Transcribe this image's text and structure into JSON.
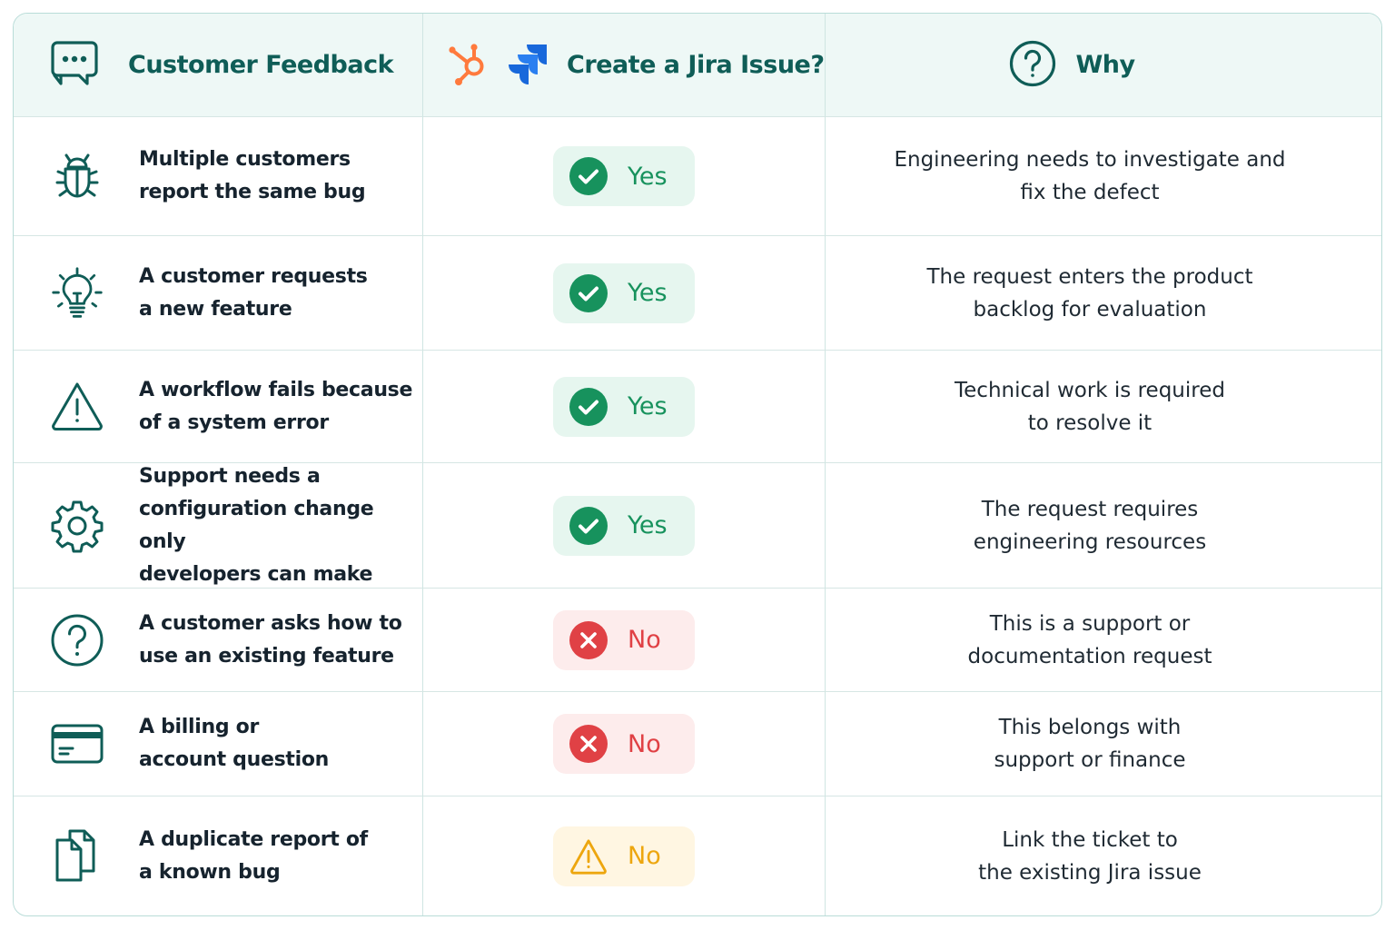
{
  "header": {
    "feedback_title": "Customer Feedback",
    "decision_title": "Create a Jira Issue?",
    "why_title": "Why"
  },
  "colors": {
    "brand_teal": "#0f5d57",
    "header_bg": "#eef8f6",
    "yes_green": "#17925d",
    "no_red": "#e04145",
    "warn_amber": "#eda60e",
    "hubspot_orange": "#ff7a3d",
    "jira_blue": "#1868db"
  },
  "rows": [
    {
      "icon": "bug-icon",
      "feedback": [
        "Multiple customers",
        "report the same bug"
      ],
      "decision": "Yes",
      "status": "yes",
      "why": [
        "Engineering needs to investigate and",
        "fix the defect"
      ]
    },
    {
      "icon": "lightbulb-icon",
      "feedback": [
        "A customer requests",
        "a new feature"
      ],
      "decision": "Yes",
      "status": "yes",
      "why": [
        "The request enters the product",
        "backlog for evaluation"
      ]
    },
    {
      "icon": "warning-icon",
      "feedback": [
        "A workflow fails because",
        "of a system error"
      ],
      "decision": "Yes",
      "status": "yes",
      "why": [
        "Technical work is required",
        "to resolve it"
      ]
    },
    {
      "icon": "gear-icon",
      "feedback": [
        "Support needs a",
        "configuration change only",
        "developers can make"
      ],
      "decision": "Yes",
      "status": "yes",
      "why": [
        "The request requires",
        "engineering resources"
      ]
    },
    {
      "icon": "question-icon",
      "feedback": [
        "A customer asks how to",
        "use an existing feature"
      ],
      "decision": "No",
      "status": "no",
      "why": [
        "This is a support or",
        "documentation request"
      ]
    },
    {
      "icon": "credit-card-icon",
      "feedback": [
        "A billing or",
        "account question"
      ],
      "decision": "No",
      "status": "no",
      "why": [
        "This belongs with",
        "support or finance"
      ]
    },
    {
      "icon": "duplicate-documents-icon",
      "feedback": [
        "A duplicate report of",
        "a known bug"
      ],
      "decision": "No",
      "status": "warn",
      "why": [
        "Link the ticket to",
        "the existing Jira issue"
      ]
    }
  ]
}
